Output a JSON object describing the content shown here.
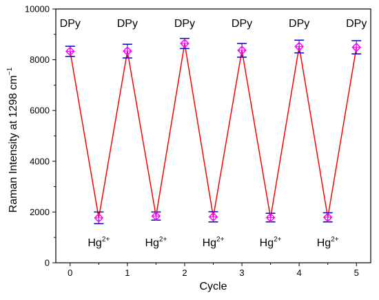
{
  "chart_data": {
    "type": "line",
    "xlabel": "Cycle",
    "ylabel": "Raman Intensity at 1298 cm",
    "ylabel_sup": "−1",
    "xlim": [
      -0.25,
      5.25
    ],
    "ylim": [
      0,
      10000
    ],
    "xticks": [
      0,
      1,
      2,
      3,
      4,
      5
    ],
    "yticks": [
      0,
      2000,
      4000,
      6000,
      8000,
      10000
    ],
    "grid": false,
    "legend": "none",
    "series": [
      {
        "x": [
          0,
          0.5,
          1,
          1.5,
          2,
          2.5,
          3,
          3.5,
          4,
          4.5,
          5
        ],
        "values": [
          8330,
          1770,
          8340,
          1840,
          8640,
          1810,
          8370,
          1780,
          8520,
          1790,
          8490
        ],
        "error": [
          200,
          230,
          270,
          160,
          200,
          200,
          270,
          170,
          250,
          180,
          260
        ],
        "line_color": "#ff0000",
        "marker_color": "#ff00ff",
        "errorbar_color": "#0000cc"
      }
    ],
    "annotations": [
      {
        "text": "DPy",
        "sup": "",
        "x": 0,
        "y": 9300
      },
      {
        "text": "DPy",
        "sup": "",
        "x": 1,
        "y": 9300
      },
      {
        "text": "DPy",
        "sup": "",
        "x": 2,
        "y": 9300
      },
      {
        "text": "DPy",
        "sup": "",
        "x": 3,
        "y": 9300
      },
      {
        "text": "DPy",
        "sup": "",
        "x": 4,
        "y": 9300
      },
      {
        "text": "DPy",
        "sup": "",
        "x": 5,
        "y": 9300
      },
      {
        "text": "Hg",
        "sup": "2+",
        "x": 0.5,
        "y": 650
      },
      {
        "text": "Hg",
        "sup": "2+",
        "x": 1.5,
        "y": 650
      },
      {
        "text": "Hg",
        "sup": "2+",
        "x": 2.5,
        "y": 650
      },
      {
        "text": "Hg",
        "sup": "2+",
        "x": 3.5,
        "y": 650
      },
      {
        "text": "Hg",
        "sup": "2+",
        "x": 4.5,
        "y": 650
      }
    ]
  }
}
